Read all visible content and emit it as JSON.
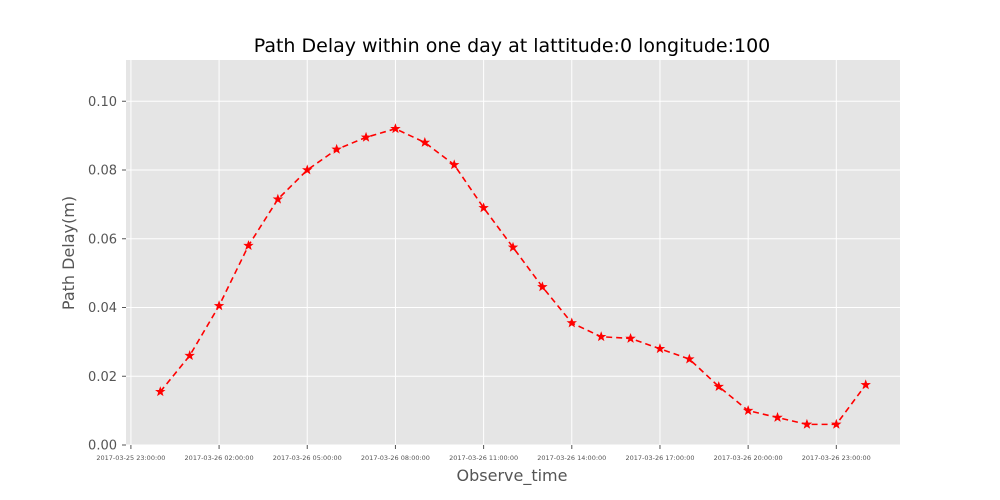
{
  "chart_data": {
    "type": "line",
    "title": "Path Delay within one day at lattitude:0 longitude:100",
    "xlabel": "Observe_time",
    "ylabel": "Path Delay(m)",
    "x_tick_labels": [
      "2017-03-25 23:00:00",
      "2017-03-26 02:00:00",
      "2017-03-26 05:00:00",
      "2017-03-26 08:00:00",
      "2017-03-26 11:00:00",
      "2017-03-26 14:00:00",
      "2017-03-26 17:00:00",
      "2017-03-26 20:00:00",
      "2017-03-26 23:00:00"
    ],
    "y_ticks": [
      "0.00",
      "0.02",
      "0.04",
      "0.06",
      "0.08",
      "0.10"
    ],
    "ylim": [
      0,
      0.112
    ],
    "xlim": [
      "2017-03-25 22:50:00",
      "2017-03-27 01:10:00"
    ],
    "grid": true,
    "background_color": "#e5e5e5",
    "series": [
      {
        "color": "#ff0000",
        "line_style": "dashed",
        "marker": "star",
        "points": [
          {
            "x": "2017-03-26 00:00:00",
            "y": 0.0155
          },
          {
            "x": "2017-03-26 01:00:00",
            "y": 0.026
          },
          {
            "x": "2017-03-26 02:00:00",
            "y": 0.0405
          },
          {
            "x": "2017-03-26 03:00:00",
            "y": 0.058
          },
          {
            "x": "2017-03-26 04:00:00",
            "y": 0.0715
          },
          {
            "x": "2017-03-26 05:00:00",
            "y": 0.08
          },
          {
            "x": "2017-03-26 06:00:00",
            "y": 0.086
          },
          {
            "x": "2017-03-26 07:00:00",
            "y": 0.0895
          },
          {
            "x": "2017-03-26 08:00:00",
            "y": 0.092
          },
          {
            "x": "2017-03-26 09:00:00",
            "y": 0.088
          },
          {
            "x": "2017-03-26 10:00:00",
            "y": 0.0815
          },
          {
            "x": "2017-03-26 11:00:00",
            "y": 0.069
          },
          {
            "x": "2017-03-26 12:00:00",
            "y": 0.0575
          },
          {
            "x": "2017-03-26 13:00:00",
            "y": 0.046
          },
          {
            "x": "2017-03-26 14:00:00",
            "y": 0.0355
          },
          {
            "x": "2017-03-26 15:00:00",
            "y": 0.0315
          },
          {
            "x": "2017-03-26 16:00:00",
            "y": 0.031
          },
          {
            "x": "2017-03-26 17:00:00",
            "y": 0.028
          },
          {
            "x": "2017-03-26 18:00:00",
            "y": 0.025
          },
          {
            "x": "2017-03-26 19:00:00",
            "y": 0.017
          },
          {
            "x": "2017-03-26 20:00:00",
            "y": 0.01
          },
          {
            "x": "2017-03-26 21:00:00",
            "y": 0.008
          },
          {
            "x": "2017-03-26 22:00:00",
            "y": 0.006
          },
          {
            "x": "2017-03-26 23:00:00",
            "y": 0.006
          },
          {
            "x": "2017-03-27 00:00:00",
            "y": 0.0175
          }
        ]
      }
    ]
  }
}
